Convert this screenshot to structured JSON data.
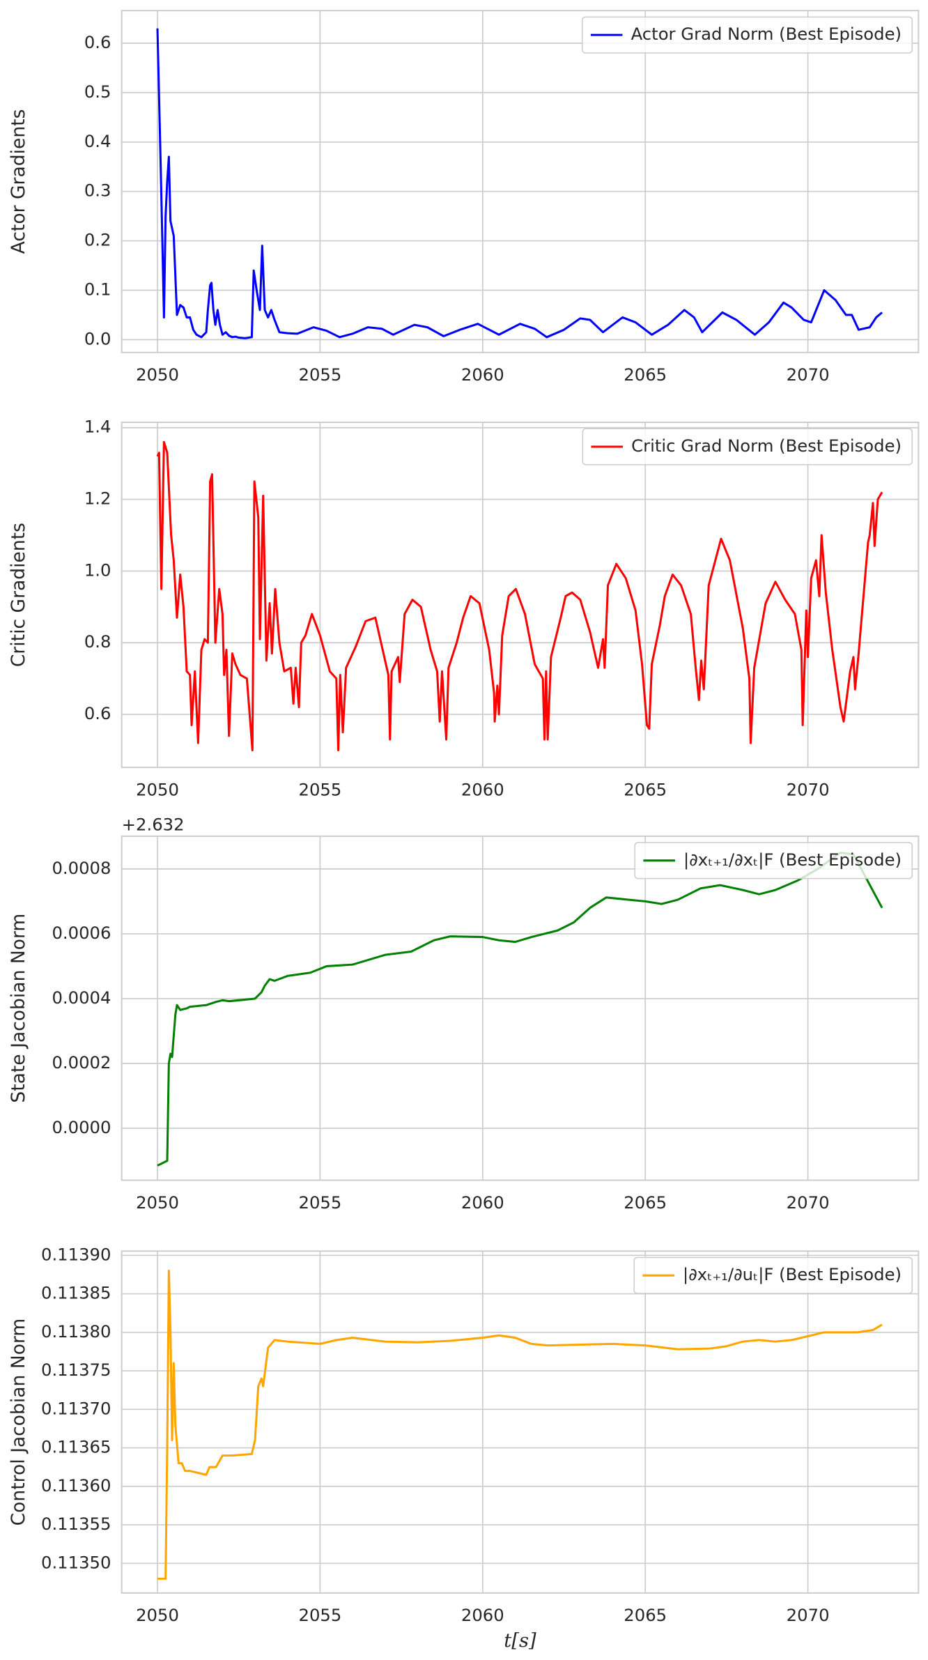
{
  "chart_data": [
    {
      "type": "line",
      "y_label": "Actor Gradients",
      "legend": "upper right",
      "grid": true,
      "x": [
        2050.0,
        2050.1,
        2050.15,
        2050.2,
        2050.25,
        2050.3,
        2050.35,
        2050.4,
        2050.5,
        2050.6,
        2050.7,
        2050.8,
        2050.9,
        2051.0,
        2051.1,
        2051.2,
        2051.35,
        2051.5,
        2051.55,
        2051.62,
        2051.66,
        2051.72,
        2051.78,
        2051.85,
        2051.92,
        2052.0,
        2052.1,
        2052.2,
        2052.3,
        2052.4,
        2052.5,
        2052.7,
        2052.9,
        2052.96,
        2053.05,
        2053.15,
        2053.22,
        2053.3,
        2053.4,
        2053.5,
        2053.6,
        2053.75,
        2054.0,
        2054.3,
        2054.8,
        2055.2,
        2055.6,
        2056.0,
        2056.47,
        2056.9,
        2057.25,
        2057.9,
        2058.3,
        2058.8,
        2059.3,
        2059.85,
        2060.5,
        2061.15,
        2061.6,
        2061.97,
        2062.5,
        2063.0,
        2063.3,
        2063.7,
        2064.3,
        2064.7,
        2065.2,
        2065.7,
        2066.2,
        2066.5,
        2066.75,
        2067.37,
        2067.8,
        2068.37,
        2068.8,
        2069.25,
        2069.5,
        2069.87,
        2070.1,
        2070.5,
        2070.85,
        2071.17,
        2071.35,
        2071.56,
        2071.9,
        2072.1,
        2072.28
      ],
      "series": [
        {
          "name": "Actor Grad Norm (Best Episode)",
          "color": "#0000ff",
          "values": [
            0.63,
            0.35,
            0.2,
            0.045,
            0.25,
            0.32,
            0.37,
            0.24,
            0.21,
            0.05,
            0.07,
            0.065,
            0.045,
            0.045,
            0.02,
            0.01,
            0.005,
            0.015,
            0.06,
            0.11,
            0.115,
            0.06,
            0.03,
            0.06,
            0.03,
            0.01,
            0.015,
            0.008,
            0.005,
            0.006,
            0.004,
            0.003,
            0.005,
            0.14,
            0.1,
            0.06,
            0.19,
            0.06,
            0.045,
            0.06,
            0.04,
            0.015,
            0.013,
            0.012,
            0.025,
            0.018,
            0.005,
            0.012,
            0.025,
            0.022,
            0.01,
            0.03,
            0.025,
            0.007,
            0.02,
            0.032,
            0.01,
            0.032,
            0.022,
            0.005,
            0.02,
            0.043,
            0.04,
            0.015,
            0.045,
            0.035,
            0.01,
            0.03,
            0.06,
            0.045,
            0.015,
            0.055,
            0.04,
            0.01,
            0.035,
            0.075,
            0.065,
            0.04,
            0.035,
            0.1,
            0.08,
            0.05,
            0.05,
            0.02,
            0.025,
            0.045,
            0.055
          ]
        }
      ],
      "xlim": [
        2048.9,
        2073.4
      ],
      "ylim": [
        -0.026,
        0.666
      ],
      "xticks": [
        2050,
        2055,
        2060,
        2065,
        2070
      ],
      "yticks": [
        {
          "value": 0,
          "label": "0.0"
        },
        0.1,
        0.2,
        0.3,
        0.4,
        0.5,
        0.6
      ]
    },
    {
      "type": "line",
      "y_label": "Critic Gradients",
      "legend": "upper right",
      "grid": true,
      "x": [
        2050.0,
        2050.05,
        2050.12,
        2050.2,
        2050.3,
        2050.42,
        2050.5,
        2050.6,
        2050.7,
        2050.8,
        2050.9,
        2051.0,
        2051.05,
        2051.15,
        2051.25,
        2051.35,
        2051.45,
        2051.55,
        2051.62,
        2051.68,
        2051.78,
        2051.9,
        2052.0,
        2052.05,
        2052.12,
        2052.2,
        2052.3,
        2052.4,
        2052.55,
        2052.75,
        2052.92,
        2052.98,
        2053.1,
        2053.15,
        2053.25,
        2053.35,
        2053.45,
        2053.52,
        2053.62,
        2053.75,
        2053.9,
        2054.1,
        2054.18,
        2054.25,
        2054.35,
        2054.42,
        2054.55,
        2054.75,
        2055.0,
        2055.3,
        2055.5,
        2055.56,
        2055.62,
        2055.7,
        2055.8,
        2056.1,
        2056.4,
        2056.7,
        2056.9,
        2057.1,
        2057.15,
        2057.2,
        2057.4,
        2057.45,
        2057.6,
        2057.84,
        2058.1,
        2058.4,
        2058.6,
        2058.68,
        2058.75,
        2058.88,
        2058.95,
        2059.2,
        2059.4,
        2059.63,
        2059.9,
        2060.2,
        2060.35,
        2060.37,
        2060.45,
        2060.5,
        2060.6,
        2060.8,
        2061.02,
        2061.3,
        2061.6,
        2061.85,
        2061.9,
        2061.95,
        2062.0,
        2062.1,
        2062.4,
        2062.55,
        2062.75,
        2063.0,
        2063.3,
        2063.55,
        2063.7,
        2063.75,
        2063.85,
        2064.11,
        2064.4,
        2064.7,
        2064.9,
        2065.05,
        2065.12,
        2065.2,
        2065.45,
        2065.6,
        2065.84,
        2066.1,
        2066.4,
        2066.55,
        2066.65,
        2066.72,
        2066.8,
        2066.95,
        2067.33,
        2067.6,
        2068.0,
        2068.2,
        2068.24,
        2068.35,
        2068.7,
        2069.0,
        2069.3,
        2069.6,
        2069.8,
        2069.84,
        2069.95,
        2070.0,
        2070.1,
        2070.25,
        2070.35,
        2070.42,
        2070.55,
        2070.75,
        2071.0,
        2071.1,
        2071.3,
        2071.4,
        2071.45,
        2071.55,
        2071.7,
        2071.85,
        2071.9,
        2072.0,
        2072.05,
        2072.15,
        2072.28
      ],
      "series": [
        {
          "name": "Critic Grad Norm (Best Episode)",
          "color": "#ff0000",
          "values": [
            1.32,
            1.33,
            0.95,
            1.36,
            1.33,
            1.1,
            1.03,
            0.87,
            0.99,
            0.9,
            0.72,
            0.71,
            0.57,
            0.72,
            0.52,
            0.78,
            0.81,
            0.8,
            1.25,
            1.27,
            0.8,
            0.95,
            0.88,
            0.71,
            0.78,
            0.54,
            0.77,
            0.74,
            0.71,
            0.7,
            0.5,
            1.25,
            1.15,
            0.81,
            1.21,
            0.75,
            0.91,
            0.77,
            0.95,
            0.8,
            0.72,
            0.73,
            0.63,
            0.73,
            0.62,
            0.8,
            0.82,
            0.88,
            0.82,
            0.72,
            0.7,
            0.5,
            0.71,
            0.55,
            0.73,
            0.79,
            0.86,
            0.87,
            0.79,
            0.71,
            0.53,
            0.72,
            0.76,
            0.69,
            0.88,
            0.92,
            0.9,
            0.78,
            0.72,
            0.58,
            0.72,
            0.53,
            0.73,
            0.8,
            0.87,
            0.93,
            0.91,
            0.78,
            0.66,
            0.58,
            0.68,
            0.6,
            0.82,
            0.93,
            0.95,
            0.88,
            0.74,
            0.7,
            0.53,
            0.72,
            0.53,
            0.76,
            0.87,
            0.93,
            0.94,
            0.92,
            0.83,
            0.73,
            0.81,
            0.73,
            0.96,
            1.02,
            0.98,
            0.89,
            0.74,
            0.57,
            0.56,
            0.74,
            0.85,
            0.93,
            0.99,
            0.96,
            0.88,
            0.73,
            0.64,
            0.75,
            0.67,
            0.96,
            1.09,
            1.03,
            0.84,
            0.7,
            0.52,
            0.73,
            0.91,
            0.97,
            0.92,
            0.88,
            0.78,
            0.57,
            0.89,
            0.76,
            0.98,
            1.03,
            0.93,
            1.1,
            0.94,
            0.78,
            0.62,
            0.58,
            0.72,
            0.76,
            0.67,
            0.76,
            0.92,
            1.08,
            1.1,
            1.19,
            1.07,
            1.2,
            1.22
          ]
        }
      ],
      "xlim": [
        2048.9,
        2073.4
      ],
      "ylim": [
        0.452,
        1.415
      ],
      "xticks": [
        2050,
        2055,
        2060,
        2065,
        2070
      ],
      "yticks": [
        0.6,
        0.8,
        {
          "value": 1,
          "label": "1.0"
        },
        1.2,
        1.4
      ]
    },
    {
      "type": "line",
      "y_label": "State Jacobian Norm",
      "y_offset_label": "+2.632",
      "legend": "upper right",
      "grid": true,
      "x": [
        2050.0,
        2050.3,
        2050.35,
        2050.4,
        2050.45,
        2050.55,
        2050.6,
        2050.7,
        2050.9,
        2051.0,
        2051.5,
        2051.8,
        2052.0,
        2052.2,
        2052.5,
        2053.0,
        2053.2,
        2053.3,
        2053.45,
        2053.6,
        2054.0,
        2054.7,
        2055.2,
        2056.0,
        2057.0,
        2057.8,
        2058.5,
        2059.0,
        2060.0,
        2060.5,
        2061.0,
        2061.5,
        2062.3,
        2062.8,
        2063.3,
        2063.8,
        2064.5,
        2065.0,
        2065.5,
        2066.0,
        2066.7,
        2067.3,
        2068.0,
        2068.5,
        2069.0,
        2069.7,
        2070.3,
        2071.0,
        2071.4,
        2071.8,
        2072.28
      ],
      "series": [
        {
          "name": "|∂xₜ₊₁/∂xₜ|F (Best Episode)",
          "color": "#008000",
          "values": [
            -0.000115,
            -0.0001,
            0.0002,
            0.00023,
            0.00022,
            0.00035,
            0.00038,
            0.000365,
            0.00037,
            0.000375,
            0.00038,
            0.00039,
            0.000395,
            0.000392,
            0.000395,
            0.0004,
            0.00042,
            0.00044,
            0.00046,
            0.000455,
            0.00047,
            0.00048,
            0.0005,
            0.000505,
            0.000535,
            0.000545,
            0.00058,
            0.000592,
            0.00059,
            0.00058,
            0.000575,
            0.00059,
            0.00061,
            0.000635,
            0.00068,
            0.000712,
            0.000705,
            0.0007,
            0.000692,
            0.000705,
            0.00074,
            0.00075,
            0.000735,
            0.000722,
            0.000735,
            0.000765,
            0.0008,
            0.00085,
            0.000845,
            0.00077,
            0.00068
          ]
        }
      ],
      "xlim": [
        2048.9,
        2073.4
      ],
      "ylim": [
        -0.00016,
        0.000901
      ],
      "xticks": [
        2050,
        2055,
        2060,
        2065,
        2070
      ],
      "yticks": [
        {
          "value": 0,
          "label": "0.0000"
        },
        0.0002,
        0.0004,
        0.0006,
        0.0008
      ]
    },
    {
      "type": "line",
      "y_label": "Control Jacobian Norm",
      "x_label": "t[s]",
      "legend": "upper right",
      "grid": true,
      "x": [
        2050.0,
        2050.25,
        2050.3,
        2050.35,
        2050.4,
        2050.45,
        2050.5,
        2050.55,
        2050.65,
        2050.75,
        2050.85,
        2051.0,
        2051.5,
        2051.6,
        2051.8,
        2052.0,
        2052.3,
        2052.9,
        2053.0,
        2053.1,
        2053.2,
        2053.25,
        2053.4,
        2053.6,
        2054.0,
        2055.0,
        2055.5,
        2056.0,
        2057.0,
        2058.0,
        2059.0,
        2060.0,
        2060.5,
        2061.0,
        2061.5,
        2062.0,
        2063.0,
        2064.0,
        2065.0,
        2066.0,
        2067.0,
        2067.5,
        2068.0,
        2068.5,
        2069.0,
        2069.5,
        2070.0,
        2070.5,
        2071.0,
        2071.5,
        2072.0,
        2072.28
      ],
      "series": [
        {
          "name": "|∂xₜ₊₁/∂uₜ|F (Best Episode)",
          "color": "#ffa500",
          "values": [
            0.11348,
            0.11348,
            0.11365,
            0.11388,
            0.1138,
            0.11366,
            0.11376,
            0.11368,
            0.11363,
            0.11363,
            0.11362,
            0.11362,
            0.113615,
            0.113625,
            0.113625,
            0.11364,
            0.11364,
            0.113642,
            0.11366,
            0.11373,
            0.11374,
            0.11373,
            0.11378,
            0.11379,
            0.113788,
            0.113785,
            0.11379,
            0.113793,
            0.113788,
            0.113787,
            0.113789,
            0.113793,
            0.113796,
            0.113793,
            0.113785,
            0.113783,
            0.113784,
            0.113785,
            0.113783,
            0.113778,
            0.113779,
            0.113782,
            0.113788,
            0.11379,
            0.113788,
            0.11379,
            0.113795,
            0.1138,
            0.1138,
            0.1138,
            0.113803,
            0.11381
          ]
        }
      ],
      "xlim": [
        2048.9,
        2073.4
      ],
      "ylim": [
        0.1134615,
        0.1139055
      ],
      "xticks": [
        2050,
        2055,
        2060,
        2065,
        2070
      ],
      "yticks": [
        {
          "value": 0.1135,
          "label": "0.11350"
        },
        0.11355,
        {
          "value": 0.1136,
          "label": "0.11360"
        },
        0.11365,
        {
          "value": 0.1137,
          "label": "0.11370"
        },
        0.11375,
        {
          "value": 0.1138,
          "label": "0.11380"
        },
        0.11385,
        {
          "value": 0.1139,
          "label": "0.11390"
        }
      ]
    }
  ]
}
